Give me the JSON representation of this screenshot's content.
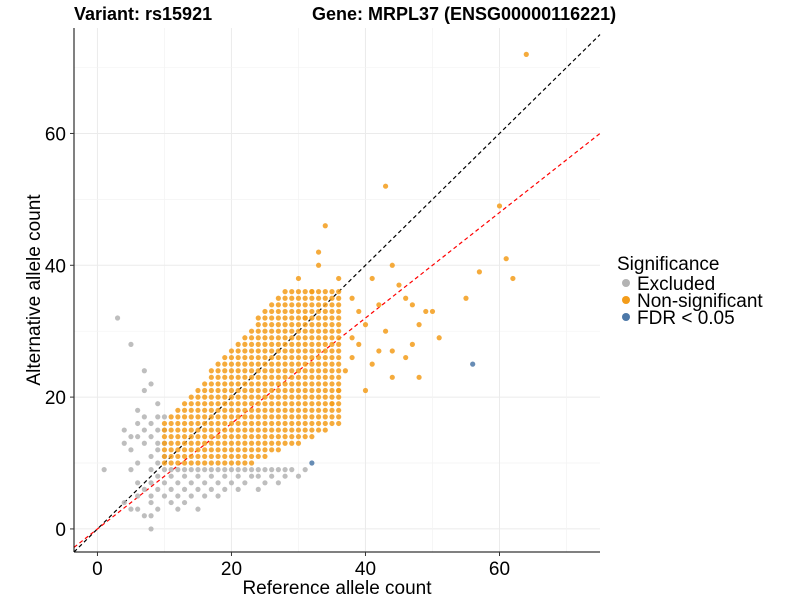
{
  "chart_data": {
    "type": "scatter",
    "title_left": "Variant: rs15921",
    "title_right": "Gene: MRPL37 (ENSG00000116221)",
    "xlabel": "Reference allele count",
    "ylabel": "Alternative allele count",
    "xlim": [
      -3.5,
      75
    ],
    "ylim": [
      -3.5,
      76
    ],
    "x_ticks": [
      0,
      20,
      40,
      60
    ],
    "y_ticks": [
      0,
      20,
      40,
      60
    ],
    "grid": true,
    "legend": {
      "title": "Significance",
      "position": "right",
      "entries": [
        {
          "label": "Excluded",
          "color": "#b3b3b3"
        },
        {
          "label": "Non-significant",
          "color": "#f39c1a"
        },
        {
          "label": "FDR < 0.05",
          "color": "#4c78a8"
        }
      ]
    },
    "reference_lines": [
      {
        "name": "identity",
        "slope": 1,
        "intercept": 0,
        "color": "#000000",
        "style": "dashed"
      },
      {
        "name": "fit",
        "slope": 0.8,
        "intercept": 0,
        "color": "#ff0000",
        "style": "dashed"
      }
    ],
    "series": [
      {
        "name": "Excluded",
        "color": "#b3b3b3",
        "points": [
          [
            1,
            9
          ],
          [
            3,
            32
          ],
          [
            4,
            4
          ],
          [
            4,
            13
          ],
          [
            4,
            15
          ],
          [
            5,
            3
          ],
          [
            5,
            12
          ],
          [
            5,
            14
          ],
          [
            5,
            28
          ],
          [
            5,
            9
          ],
          [
            6,
            3
          ],
          [
            6,
            5
          ],
          [
            6,
            7
          ],
          [
            6,
            10
          ],
          [
            6,
            14
          ],
          [
            6,
            16
          ],
          [
            6,
            18
          ],
          [
            7,
            2
          ],
          [
            7,
            6
          ],
          [
            7,
            13
          ],
          [
            7,
            15
          ],
          [
            7,
            17
          ],
          [
            7,
            21
          ],
          [
            7,
            24
          ],
          [
            8,
            0
          ],
          [
            8,
            2
          ],
          [
            8,
            4
          ],
          [
            8,
            5
          ],
          [
            8,
            7
          ],
          [
            8,
            9
          ],
          [
            8,
            11
          ],
          [
            8,
            14
          ],
          [
            8,
            16
          ],
          [
            8,
            22
          ],
          [
            9,
            3
          ],
          [
            9,
            6
          ],
          [
            9,
            8
          ],
          [
            9,
            10
          ],
          [
            9,
            12
          ],
          [
            9,
            13
          ],
          [
            9,
            15
          ],
          [
            9,
            17
          ],
          [
            9,
            19
          ],
          [
            10,
            5
          ],
          [
            10,
            7
          ],
          [
            10,
            9
          ],
          [
            10,
            11
          ],
          [
            10,
            13
          ],
          [
            10,
            15
          ],
          [
            10,
            17
          ],
          [
            11,
            4
          ],
          [
            11,
            6
          ],
          [
            11,
            8
          ],
          [
            11,
            9
          ],
          [
            12,
            3
          ],
          [
            12,
            5
          ],
          [
            12,
            7
          ],
          [
            12,
            9
          ],
          [
            13,
            4
          ],
          [
            13,
            6
          ],
          [
            13,
            8
          ],
          [
            13,
            9
          ],
          [
            14,
            5
          ],
          [
            14,
            7
          ],
          [
            14,
            9
          ],
          [
            15,
            3
          ],
          [
            15,
            6
          ],
          [
            15,
            8
          ],
          [
            15,
            9
          ],
          [
            16,
            5
          ],
          [
            16,
            7
          ],
          [
            16,
            9
          ],
          [
            17,
            6
          ],
          [
            17,
            8
          ],
          [
            17,
            9
          ],
          [
            18,
            5
          ],
          [
            18,
            7
          ],
          [
            18,
            9
          ],
          [
            19,
            6
          ],
          [
            19,
            8
          ],
          [
            19,
            9
          ],
          [
            20,
            7
          ],
          [
            20,
            9
          ],
          [
            21,
            6
          ],
          [
            21,
            8
          ],
          [
            21,
            9
          ],
          [
            22,
            7
          ],
          [
            22,
            9
          ],
          [
            23,
            8
          ],
          [
            23,
            9
          ],
          [
            24,
            6
          ],
          [
            24,
            8
          ],
          [
            24,
            9
          ],
          [
            25,
            7
          ],
          [
            25,
            9
          ],
          [
            26,
            8
          ],
          [
            26,
            9
          ],
          [
            27,
            7
          ],
          [
            27,
            9
          ],
          [
            28,
            8
          ],
          [
            28,
            9
          ],
          [
            29,
            9
          ],
          [
            30,
            8
          ],
          [
            31,
            9
          ]
        ]
      },
      {
        "name": "Non-significant",
        "color": "#f39c1a",
        "points": [
          [
            64,
            72
          ],
          [
            43,
            52
          ],
          [
            60,
            49
          ],
          [
            34,
            46
          ],
          [
            61,
            41
          ],
          [
            57,
            39
          ],
          [
            62,
            38
          ],
          [
            55,
            35
          ],
          [
            51,
            29
          ],
          [
            47,
            28
          ],
          [
            44,
            23
          ],
          [
            48,
            23
          ],
          [
            40,
            21
          ],
          [
            46,
            26
          ],
          [
            49,
            33
          ],
          [
            43,
            30
          ],
          [
            42,
            34
          ],
          [
            45,
            37
          ],
          [
            48,
            31
          ],
          [
            44,
            27
          ],
          [
            41,
            25
          ],
          [
            39,
            33
          ],
          [
            38,
            35
          ],
          [
            41,
            38
          ],
          [
            44,
            40
          ],
          [
            38,
            26
          ],
          [
            37,
            24
          ],
          [
            36,
            21
          ],
          [
            35,
            19
          ],
          [
            39,
            28
          ],
          [
            38,
            29
          ],
          [
            47,
            34
          ],
          [
            50,
            33
          ],
          [
            46,
            35
          ],
          [
            42,
            27
          ],
          [
            40,
            31
          ],
          [
            36,
            38
          ],
          [
            33,
            40
          ],
          [
            32,
            36
          ],
          [
            31,
            32
          ],
          [
            30,
            38
          ],
          [
            33,
            42
          ]
        ]
      },
      {
        "name": "FDR < 0.05",
        "color": "#4c78a8",
        "points": [
          [
            56,
            25
          ],
          [
            32,
            10
          ]
        ]
      }
    ],
    "dense_region": {
      "series": "Non-significant",
      "x_range": [
        10,
        36
      ],
      "y_range": [
        10,
        36
      ],
      "note_values_integer_grid": true
    }
  }
}
